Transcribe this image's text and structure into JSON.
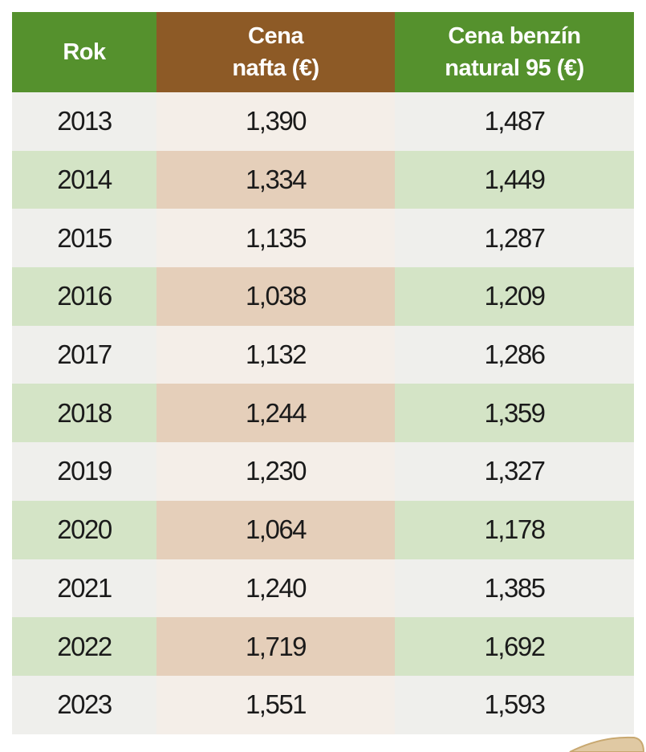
{
  "table": {
    "header": [
      [
        "Rok"
      ],
      [
        "Cena",
        "nafta (€)"
      ],
      [
        "Cena benzín",
        "natural 95 (€)"
      ]
    ],
    "rows": [
      [
        "2013",
        "1,390",
        "1,487"
      ],
      [
        "2014",
        "1,334",
        "1,449"
      ],
      [
        "2015",
        "1,135",
        "1,287"
      ],
      [
        "2016",
        "1,038",
        "1,209"
      ],
      [
        "2017",
        "1,132",
        "1,286"
      ],
      [
        "2018",
        "1,244",
        "1,359"
      ],
      [
        "2019",
        "1,230",
        "1,327"
      ],
      [
        "2020",
        "1,064",
        "1,178"
      ],
      [
        "2021",
        "1,240",
        "1,385"
      ],
      [
        "2022",
        "1,719",
        "1,692"
      ],
      [
        "2023",
        "1,551",
        "1,593"
      ]
    ]
  }
}
